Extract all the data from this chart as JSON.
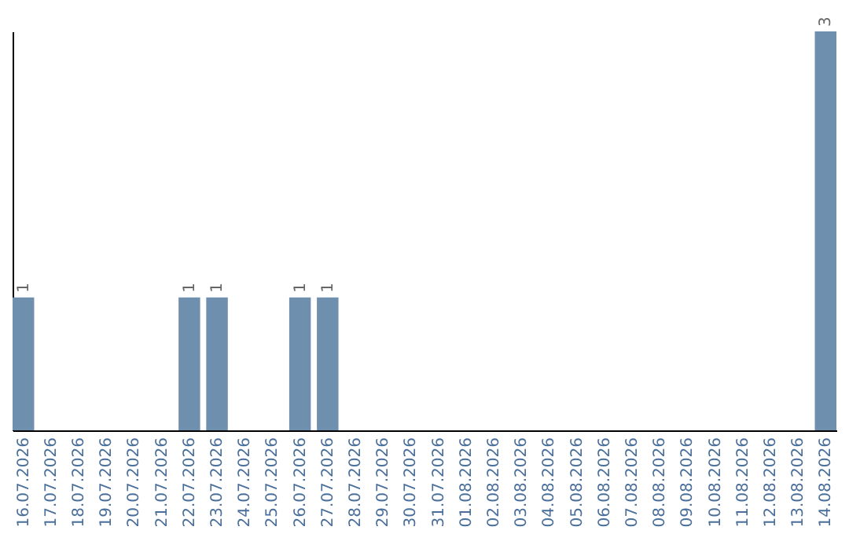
{
  "chart_data": {
    "type": "bar",
    "categories": [
      "16.07.2026",
      "17.07.2026",
      "18.07.2026",
      "19.07.2026",
      "20.07.2026",
      "21.07.2026",
      "22.07.2026",
      "23.07.2026",
      "24.07.2026",
      "25.07.2026",
      "26.07.2026",
      "27.07.2026",
      "28.07.2026",
      "29.07.2026",
      "30.07.2026",
      "31.07.2026",
      "01.08.2026",
      "02.08.2026",
      "03.08.2026",
      "04.08.2026",
      "05.08.2026",
      "06.08.2026",
      "07.08.2026",
      "08.08.2026",
      "09.08.2026",
      "10.08.2026",
      "11.08.2026",
      "12.08.2026",
      "13.08.2026",
      "14.08.2026"
    ],
    "values": [
      1,
      0,
      0,
      0,
      0,
      0,
      1,
      1,
      0,
      0,
      1,
      1,
      0,
      0,
      0,
      0,
      0,
      0,
      0,
      0,
      0,
      0,
      0,
      0,
      0,
      0,
      0,
      0,
      0,
      3
    ],
    "value_labels": [
      "1",
      null,
      null,
      null,
      null,
      null,
      "1",
      "1",
      null,
      null,
      "1",
      "1",
      null,
      null,
      null,
      null,
      null,
      null,
      null,
      null,
      null,
      null,
      null,
      null,
      null,
      null,
      null,
      null,
      null,
      "3"
    ],
    "color": "#6f8fae",
    "grid": false,
    "tick_labels": "x"
  }
}
